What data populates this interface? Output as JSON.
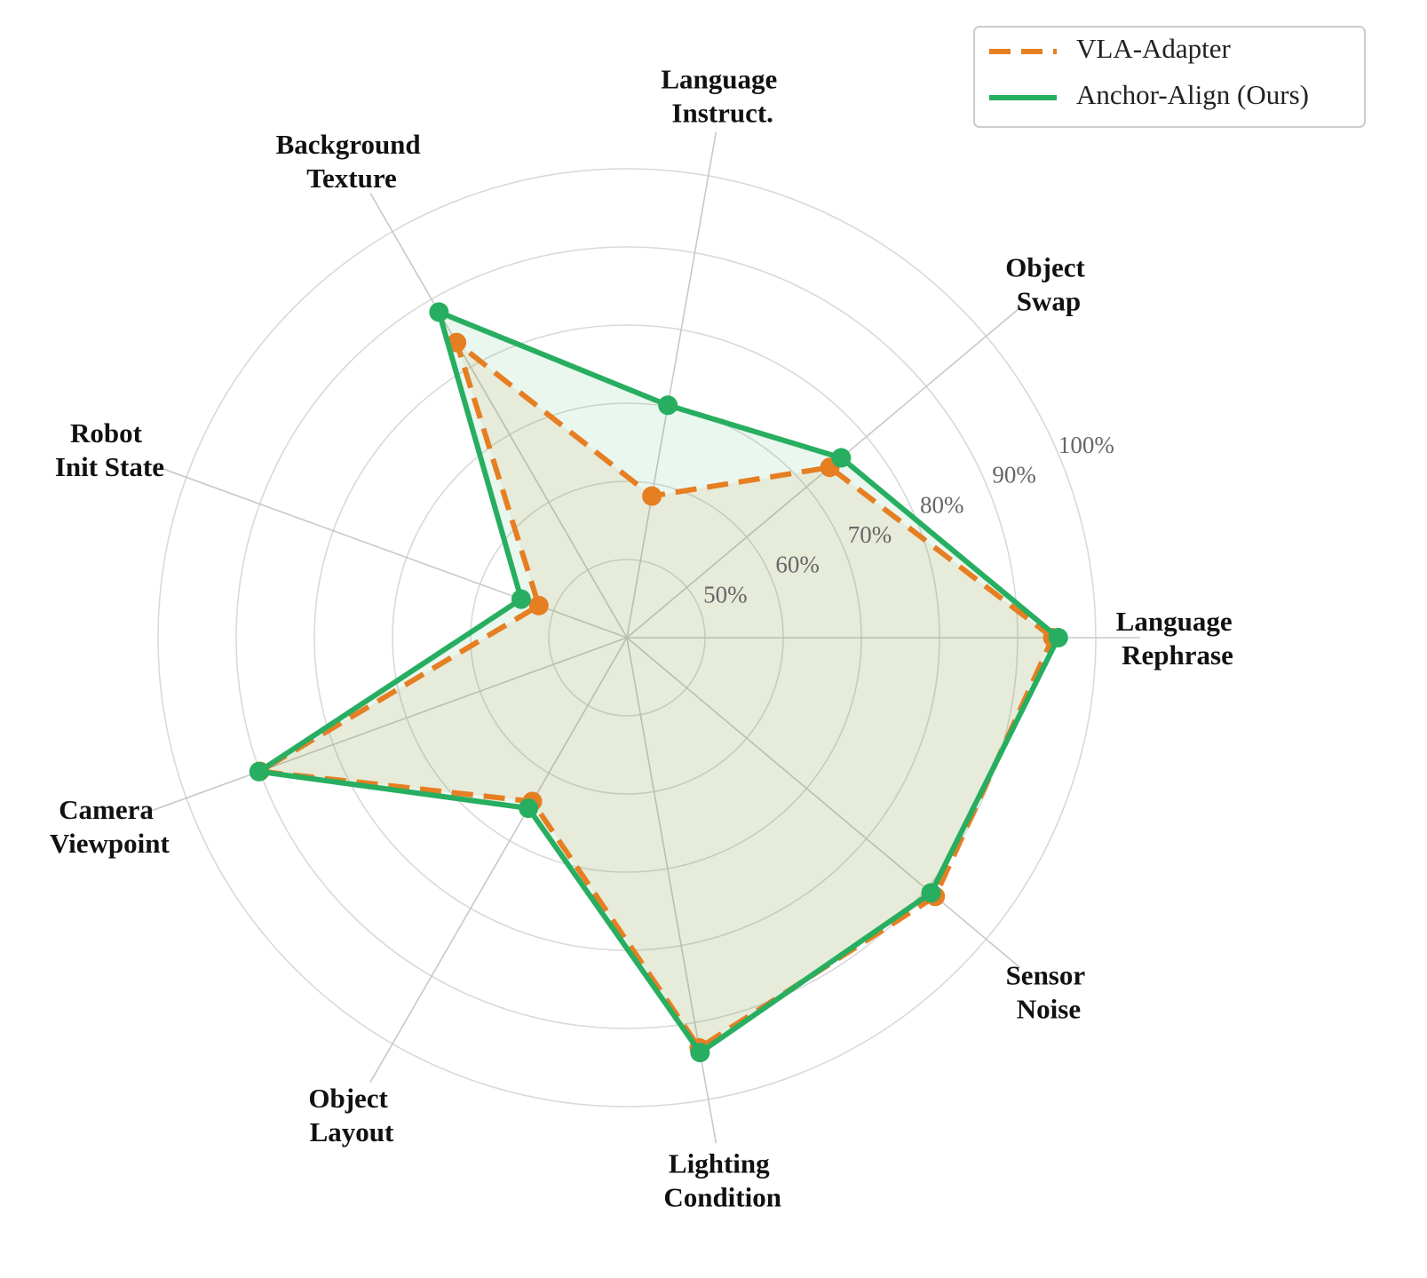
{
  "chart_data": {
    "type": "radar",
    "categories": [
      "Language Rephrase",
      "Object Swap",
      "Language Instruct.",
      "Background Texture",
      "Robot Init State",
      "Camera Viewpoint",
      "Object Layout",
      "Lighting Condition",
      "Sensor Noise"
    ],
    "series": [
      {
        "name": "VLA-Adapter",
        "color": "#e67e22",
        "dash": true,
        "values": [
          94.5,
          73.9,
          58.4,
          83.6,
          52.0,
          90.0,
          64.2,
          93.3,
          91.5
        ]
      },
      {
        "name": "Anchor-Align (Ours)",
        "color": "#27ae60",
        "dash": false,
        "values": [
          95.2,
          75.8,
          70.2,
          88.1,
          54.4,
          90.1,
          65.2,
          93.9,
          90.8
        ]
      }
    ],
    "rlim": [
      40,
      100
    ],
    "rticks": [
      {
        "value": 50,
        "label": "50%"
      },
      {
        "value": 60,
        "label": "60%"
      },
      {
        "value": 70,
        "label": "70%"
      },
      {
        "value": 80,
        "label": "80%"
      },
      {
        "value": 90,
        "label": "90%"
      },
      {
        "value": 100,
        "label": "100%"
      }
    ],
    "grid": true,
    "legend": "upper right"
  }
}
